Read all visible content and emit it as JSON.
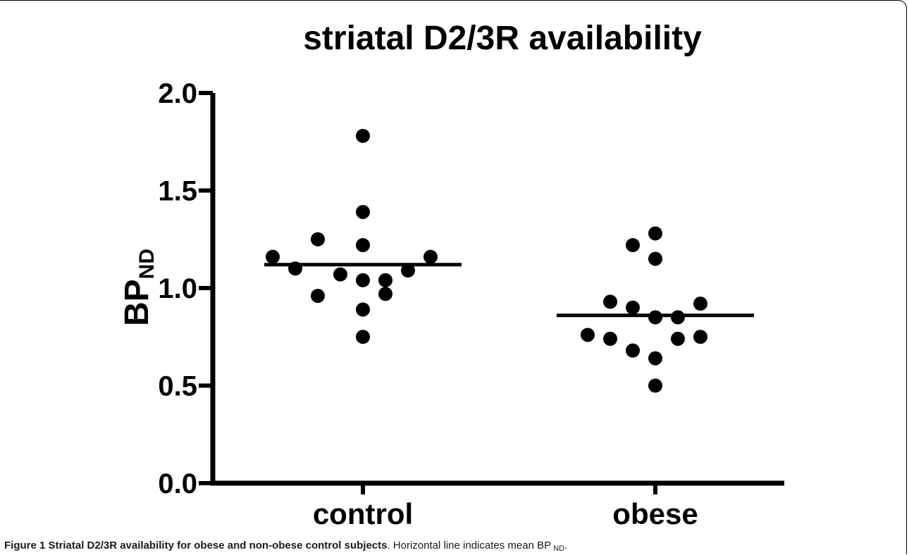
{
  "chart_data": {
    "type": "scatter",
    "title": "striatal D2/3R availability",
    "ylabel": "BP",
    "ylabel_subscript": "ND",
    "categories": [
      "control",
      "obese"
    ],
    "ylim": [
      0.0,
      2.0
    ],
    "yticks": [
      "0.0",
      "0.5",
      "1.0",
      "1.5",
      "2.0"
    ],
    "series": [
      {
        "category": "control",
        "points": [
          {
            "x_offset": -4,
            "y": 1.16
          },
          {
            "x_offset": -3,
            "y": 1.1
          },
          {
            "x_offset": -2,
            "y": 1.25
          },
          {
            "x_offset": -2,
            "y": 0.96
          },
          {
            "x_offset": -1,
            "y": 1.07
          },
          {
            "x_offset": 0,
            "y": 1.78
          },
          {
            "x_offset": 0,
            "y": 1.39
          },
          {
            "x_offset": 0,
            "y": 1.22
          },
          {
            "x_offset": 0,
            "y": 1.04
          },
          {
            "x_offset": 0,
            "y": 0.89
          },
          {
            "x_offset": 0,
            "y": 0.75
          },
          {
            "x_offset": 1,
            "y": 1.04
          },
          {
            "x_offset": 1,
            "y": 0.97
          },
          {
            "x_offset": 2,
            "y": 1.09
          },
          {
            "x_offset": 3,
            "y": 1.16
          }
        ],
        "mean": 1.12
      },
      {
        "category": "obese",
        "points": [
          {
            "x_offset": -3,
            "y": 0.76
          },
          {
            "x_offset": -2,
            "y": 0.74
          },
          {
            "x_offset": -2,
            "y": 0.93
          },
          {
            "x_offset": -1,
            "y": 1.22
          },
          {
            "x_offset": -1,
            "y": 0.9
          },
          {
            "x_offset": -1,
            "y": 0.68
          },
          {
            "x_offset": 0,
            "y": 1.28
          },
          {
            "x_offset": 0,
            "y": 1.15
          },
          {
            "x_offset": 0,
            "y": 0.85
          },
          {
            "x_offset": 0,
            "y": 0.64
          },
          {
            "x_offset": 0,
            "y": 0.5
          },
          {
            "x_offset": 1,
            "y": 0.85
          },
          {
            "x_offset": 1,
            "y": 0.74
          },
          {
            "x_offset": 2,
            "y": 0.92
          },
          {
            "x_offset": 2,
            "y": 0.75
          }
        ],
        "mean": 0.86
      }
    ],
    "grid": false,
    "legend": "none"
  },
  "caption": {
    "label": "Figure 1 Striatal D2/3R availability for obese and non-obese control subjects",
    "text": ". Horizontal line indicates mean BP",
    "subscript": "ND",
    "end": "."
  }
}
